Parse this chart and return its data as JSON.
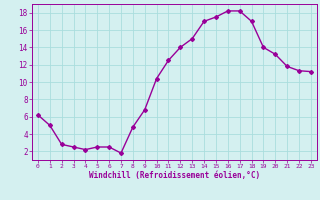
{
  "x": [
    0,
    1,
    2,
    3,
    4,
    5,
    6,
    7,
    8,
    9,
    10,
    11,
    12,
    13,
    14,
    15,
    16,
    17,
    18,
    19,
    20,
    21,
    22,
    23
  ],
  "y": [
    6.2,
    5.0,
    2.8,
    2.5,
    2.2,
    2.5,
    2.5,
    1.8,
    4.8,
    6.8,
    10.4,
    12.5,
    14.0,
    15.0,
    17.0,
    17.5,
    18.2,
    18.2,
    17.0,
    14.0,
    13.2,
    11.8,
    11.3,
    11.2
  ],
  "line_color": "#990099",
  "marker": "D",
  "marker_size": 2,
  "bg_color": "#d4f0f0",
  "grid_color": "#aadddd",
  "xlabel": "Windchill (Refroidissement éolien,°C)",
  "ylabel_ticks": [
    2,
    4,
    6,
    8,
    10,
    12,
    14,
    16,
    18
  ],
  "ylim": [
    1,
    19
  ],
  "xlim": [
    -0.5,
    23.5
  ],
  "xticks": [
    0,
    1,
    2,
    3,
    4,
    5,
    6,
    7,
    8,
    9,
    10,
    11,
    12,
    13,
    14,
    15,
    16,
    17,
    18,
    19,
    20,
    21,
    22,
    23
  ]
}
